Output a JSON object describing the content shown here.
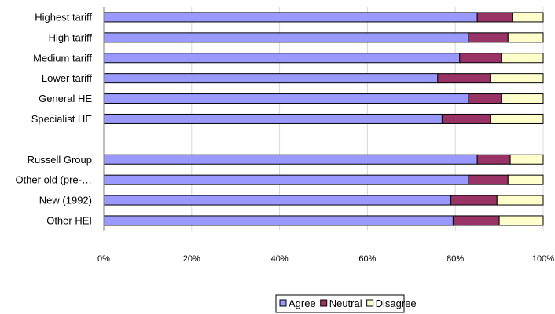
{
  "chart_data": {
    "type": "bar",
    "orientation": "horizontal",
    "stacked": true,
    "percent_stacked": true,
    "categories": [
      "Highest tariff",
      "High tariff",
      "Medium tariff",
      "Lower tariff",
      "General HE",
      "Specialist HE",
      "",
      "Russell Group",
      "Other old (pre-…",
      "New (1992)",
      "Other HEI"
    ],
    "series": [
      {
        "name": "Agree",
        "color": "#9999ff",
        "values": [
          85,
          83,
          81,
          76,
          83,
          77,
          null,
          85,
          83,
          79,
          79.5
        ]
      },
      {
        "name": "Neutral",
        "color": "#993366",
        "values": [
          8,
          9,
          9.5,
          12,
          7.5,
          11,
          null,
          7.5,
          9,
          10.5,
          10.5
        ]
      },
      {
        "name": "Disagree",
        "color": "#ffffcc",
        "values": [
          7,
          8,
          9.5,
          12,
          9.5,
          12,
          null,
          7.5,
          8,
          10.5,
          10
        ]
      }
    ],
    "x_ticks": [
      "0%",
      "20%",
      "40%",
      "60%",
      "80%",
      "100%"
    ],
    "xlim": [
      0,
      100
    ],
    "grid": true,
    "legend_position": "bottom"
  }
}
